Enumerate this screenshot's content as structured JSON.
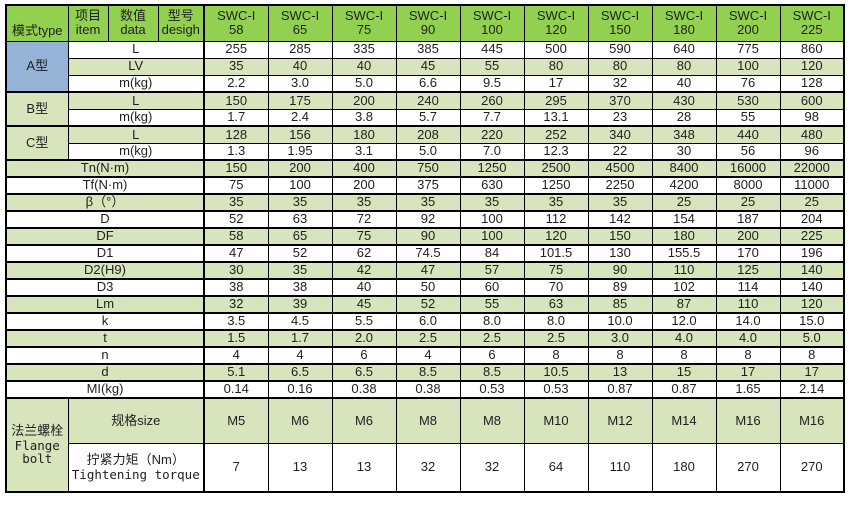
{
  "table": {
    "header": {
      "mode_type_label": "模式type",
      "col_item": {
        "zh": "项目",
        "en": "item"
      },
      "col_data": {
        "zh": "数值",
        "en": "data"
      },
      "col_design": {
        "zh": "型号",
        "en": "desigh"
      },
      "model_prefix": "SWC-I",
      "model_sizes": [
        "58",
        "65",
        "75",
        "90",
        "100",
        "120",
        "150",
        "180",
        "200",
        "225"
      ]
    },
    "type_groups": [
      {
        "label": "A型",
        "rows": [
          {
            "param": "L",
            "values": [
              "255",
              "285",
              "335",
              "385",
              "445",
              "500",
              "590",
              "640",
              "775",
              "860"
            ]
          },
          {
            "param": "LV",
            "values": [
              "35",
              "40",
              "40",
              "45",
              "55",
              "80",
              "80",
              "80",
              "100",
              "120"
            ]
          },
          {
            "param": "m(kg)",
            "values": [
              "2.2",
              "3.0",
              "5.0",
              "6.6",
              "9.5",
              "17",
              "32",
              "40",
              "76",
              "128"
            ]
          }
        ]
      },
      {
        "label": "B型",
        "rows": [
          {
            "param": "L",
            "values": [
              "150",
              "175",
              "200",
              "240",
              "260",
              "295",
              "370",
              "430",
              "530",
              "600"
            ]
          },
          {
            "param": "m(kg)",
            "values": [
              "1.7",
              "2.4",
              "3.8",
              "5.7",
              "7.7",
              "13.1",
              "23",
              "28",
              "55",
              "98"
            ]
          }
        ]
      },
      {
        "label": "C型",
        "rows": [
          {
            "param": "L",
            "values": [
              "128",
              "156",
              "180",
              "208",
              "220",
              "252",
              "340",
              "348",
              "440",
              "480"
            ]
          },
          {
            "param": "m(kg)",
            "values": [
              "1.3",
              "1.95",
              "3.1",
              "5.0",
              "7.0",
              "12.3",
              "22",
              "30",
              "56",
              "96"
            ]
          }
        ]
      }
    ],
    "param_rows": [
      {
        "param": "Tn(N·m)",
        "values": [
          "150",
          "200",
          "400",
          "750",
          "1250",
          "2500",
          "4500",
          "8400",
          "16000",
          "22000"
        ]
      },
      {
        "param": "Tf(N·m)",
        "values": [
          "75",
          "100",
          "200",
          "375",
          "630",
          "1250",
          "2250",
          "4200",
          "8000",
          "11000"
        ]
      },
      {
        "param": "β（°）",
        "values": [
          "35",
          "35",
          "35",
          "35",
          "35",
          "35",
          "35",
          "25",
          "25",
          "25"
        ]
      },
      {
        "param": "D",
        "values": [
          "52",
          "63",
          "72",
          "92",
          "100",
          "112",
          "142",
          "154",
          "187",
          "204"
        ]
      },
      {
        "param": "DF",
        "values": [
          "58",
          "65",
          "75",
          "90",
          "100",
          "120",
          "150",
          "180",
          "200",
          "225"
        ]
      },
      {
        "param": "D1",
        "values": [
          "47",
          "52",
          "62",
          "74.5",
          "84",
          "101.5",
          "130",
          "155.5",
          "170",
          "196"
        ]
      },
      {
        "param": "D2(H9)",
        "values": [
          "30",
          "35",
          "42",
          "47",
          "57",
          "75",
          "90",
          "110",
          "125",
          "140"
        ]
      },
      {
        "param": "D3",
        "values": [
          "38",
          "38",
          "40",
          "50",
          "60",
          "70",
          "89",
          "102",
          "114",
          "140"
        ]
      },
      {
        "param": "Lm",
        "values": [
          "32",
          "39",
          "45",
          "52",
          "55",
          "63",
          "85",
          "87",
          "110",
          "120"
        ]
      },
      {
        "param": "k",
        "values": [
          "3.5",
          "4.5",
          "5.5",
          "6.0",
          "8.0",
          "8.0",
          "10.0",
          "12.0",
          "14.0",
          "15.0"
        ]
      },
      {
        "param": "t",
        "values": [
          "1.5",
          "1.7",
          "2.0",
          "2.5",
          "2.5",
          "2.5",
          "3.0",
          "4.0",
          "4.0",
          "5.0"
        ]
      },
      {
        "param": "n",
        "values": [
          "4",
          "4",
          "6",
          "4",
          "6",
          "8",
          "8",
          "8",
          "8",
          "8"
        ]
      },
      {
        "param": "d",
        "values": [
          "5.1",
          "6.5",
          "6.5",
          "8.5",
          "8.5",
          "10.5",
          "13",
          "15",
          "17",
          "17"
        ]
      },
      {
        "param": "MI(kg)",
        "values": [
          "0.14",
          "0.16",
          "0.38",
          "0.38",
          "0.53",
          "0.53",
          "0.87",
          "0.87",
          "1.65",
          "2.14"
        ]
      }
    ],
    "flange_group": {
      "label_lines": [
        "法兰螺栓",
        "Flange",
        "bolt"
      ],
      "rows": [
        {
          "param_lines": [
            "规格size"
          ],
          "mono_from": 99,
          "values": [
            "M5",
            "M6",
            "M6",
            "M8",
            "M8",
            "M10",
            "M12",
            "M14",
            "M16",
            "M16"
          ]
        },
        {
          "param_lines": [
            "拧紧力矩（Nm）",
            "Tightening torque"
          ],
          "mono_from": 1,
          "values": [
            "7",
            "13",
            "13",
            "32",
            "32",
            "64",
            "110",
            "180",
            "270",
            "270"
          ]
        }
      ]
    },
    "colors": {
      "header_green": "#92D050",
      "band_green": "#D8E4BC",
      "blue": "#95B3D7",
      "white": "#FFFFFF",
      "border": "#000000",
      "text": "#1F1F1F"
    }
  }
}
